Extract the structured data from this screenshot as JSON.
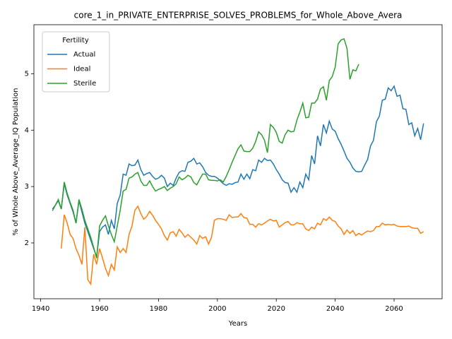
{
  "chart_data": {
    "type": "line",
    "title": "core_1_in_PRIVATE_ENTERPRISE_SOLVES_PROBLEMS_for_Whole_Above_Avera",
    "xlabel": "Years",
    "ylabel": "% of Whole Above_Average_IQ Population",
    "legend_title": "Fertility",
    "legend": "upper left",
    "grid": false,
    "x": [
      1944,
      1945,
      1946,
      1947,
      1948,
      1949,
      1950,
      1951,
      1952,
      1953,
      1954,
      1955,
      1956,
      1957,
      1958,
      1959,
      1960,
      1961,
      1962,
      1963,
      1964,
      1965,
      1966,
      1967,
      1968,
      1969,
      1970,
      1971,
      1972,
      1973,
      1974,
      1975,
      1976,
      1977,
      1978,
      1979,
      1980,
      1981,
      1982,
      1983,
      1984,
      1985,
      1986,
      1987,
      1988,
      1989,
      1990,
      1991,
      1992,
      1993,
      1994,
      1995,
      1996,
      1997,
      1998,
      1999,
      2000,
      2001,
      2002,
      2003,
      2004,
      2005,
      2006,
      2007,
      2008,
      2009,
      2010,
      2011,
      2012,
      2013,
      2014,
      2015,
      2016,
      2017,
      2018,
      2019,
      2020,
      2021,
      2022,
      2023,
      2024,
      2025,
      2026,
      2027,
      2028,
      2029,
      2030,
      2031,
      2032,
      2033,
      2034,
      2035,
      2036,
      2037,
      2038,
      2039,
      2040,
      2041,
      2042,
      2043,
      2044,
      2045,
      2046,
      2047,
      2048,
      2049,
      2050,
      2051,
      2052,
      2053,
      2054,
      2055,
      2056,
      2057,
      2058,
      2059,
      2060,
      2061,
      2062,
      2063,
      2064,
      2065,
      2066,
      2067,
      2068,
      2069,
      2070
    ],
    "series": [
      {
        "name": "Actual",
        "color": "#1f77b4",
        "values": [
          2.6,
          2.67,
          2.75,
          2.6,
          3.05,
          2.85,
          2.7,
          2.55,
          2.35,
          2.75,
          2.55,
          2.35,
          2.2,
          2.05,
          1.9,
          1.75,
          2.2,
          2.28,
          2.32,
          2.15,
          2.4,
          2.25,
          2.7,
          2.85,
          3.22,
          3.2,
          3.4,
          3.37,
          3.38,
          3.47,
          3.3,
          3.2,
          3.23,
          3.25,
          3.18,
          3.13,
          3.15,
          3.2,
          3.15,
          3.0,
          3.06,
          3.02,
          3.15,
          3.25,
          3.28,
          3.27,
          3.43,
          3.45,
          3.5,
          3.4,
          3.42,
          3.35,
          3.25,
          3.2,
          3.18,
          3.18,
          3.15,
          3.1,
          3.05,
          3.02,
          3.05,
          3.04,
          3.07,
          3.08,
          3.22,
          3.13,
          3.22,
          3.14,
          3.3,
          3.28,
          3.47,
          3.43,
          3.5,
          3.46,
          3.47,
          3.4,
          3.3,
          3.22,
          3.12,
          3.07,
          3.06,
          2.9,
          2.98,
          2.9,
          3.08,
          2.98,
          3.22,
          3.12,
          3.55,
          3.4,
          3.9,
          3.72,
          4.1,
          3.95,
          4.16,
          4.02,
          3.98,
          3.85,
          3.75,
          3.63,
          3.5,
          3.43,
          3.33,
          3.27,
          3.26,
          3.27,
          3.38,
          3.48,
          3.72,
          3.82,
          4.15,
          4.25,
          4.53,
          4.55,
          4.75,
          4.7,
          4.78,
          4.6,
          4.62,
          4.38,
          4.37,
          4.1,
          4.13,
          3.9,
          4.03,
          3.83,
          4.12
        ]
      },
      {
        "name": "Ideal",
        "color": "#ff7f0e",
        "values": [
          null,
          null,
          null,
          1.9,
          2.5,
          2.35,
          2.15,
          2.08,
          1.9,
          1.78,
          1.62,
          2.28,
          1.35,
          1.27,
          1.8,
          1.62,
          1.9,
          1.73,
          1.55,
          1.42,
          1.62,
          1.52,
          1.93,
          1.83,
          1.9,
          1.83,
          2.15,
          2.3,
          2.58,
          2.65,
          2.52,
          2.42,
          2.47,
          2.56,
          2.49,
          2.4,
          2.33,
          2.25,
          2.13,
          2.05,
          2.18,
          2.2,
          2.12,
          2.24,
          2.18,
          2.1,
          2.15,
          2.1,
          2.05,
          1.98,
          2.13,
          2.08,
          2.11,
          1.98,
          2.1,
          2.4,
          2.43,
          2.43,
          2.42,
          2.4,
          2.5,
          2.45,
          2.46,
          2.46,
          2.52,
          2.45,
          2.44,
          2.33,
          2.33,
          2.28,
          2.34,
          2.32,
          2.35,
          2.39,
          2.42,
          2.39,
          2.4,
          2.28,
          2.32,
          2.36,
          2.38,
          2.32,
          2.32,
          2.36,
          2.34,
          2.34,
          2.25,
          2.22,
          2.28,
          2.25,
          2.35,
          2.32,
          2.43,
          2.4,
          2.46,
          2.4,
          2.38,
          2.3,
          2.25,
          2.15,
          2.23,
          2.17,
          2.22,
          2.13,
          2.17,
          2.14,
          2.18,
          2.21,
          2.2,
          2.22,
          2.29,
          2.29,
          2.35,
          2.32,
          2.33,
          2.32,
          2.33,
          2.3,
          2.29,
          2.29,
          2.29,
          2.3,
          2.27,
          2.26,
          2.26,
          2.17,
          2.2
        ]
      },
      {
        "name": "Sterile",
        "color": "#2ca02c",
        "values": [
          2.57,
          2.67,
          2.77,
          2.6,
          3.08,
          2.88,
          2.72,
          2.58,
          2.35,
          2.77,
          2.6,
          2.4,
          2.25,
          2.1,
          1.92,
          1.73,
          2.3,
          2.4,
          2.48,
          2.3,
          2.15,
          2.02,
          2.3,
          2.58,
          2.92,
          2.95,
          3.15,
          3.17,
          3.22,
          3.25,
          3.1,
          3.02,
          3.02,
          3.1,
          3.0,
          2.92,
          2.95,
          2.97,
          3.0,
          2.93,
          2.97,
          3.0,
          3.05,
          3.17,
          3.12,
          3.15,
          3.2,
          3.17,
          3.07,
          3.03,
          3.13,
          3.22,
          3.22,
          3.12,
          3.11,
          3.11,
          3.1,
          3.12,
          3.08,
          3.18,
          3.3,
          3.43,
          3.55,
          3.67,
          3.74,
          3.63,
          3.62,
          3.62,
          3.68,
          3.8,
          3.97,
          3.92,
          3.82,
          3.6,
          4.1,
          4.05,
          3.96,
          3.8,
          3.77,
          3.92,
          4.0,
          3.97,
          3.98,
          4.18,
          4.32,
          4.48,
          4.22,
          4.23,
          4.48,
          4.48,
          4.55,
          4.73,
          4.77,
          4.53,
          4.88,
          4.95,
          5.12,
          5.53,
          5.6,
          5.62,
          5.45,
          4.9,
          5.07,
          5.05,
          5.17,
          null,
          null,
          null,
          null,
          null,
          null,
          null,
          null,
          null,
          null,
          null,
          null,
          null,
          null,
          null,
          null,
          null,
          null,
          null,
          null,
          null,
          null
        ]
      }
    ],
    "xlim": [
      1937.7,
      2076.3
    ],
    "xticks": [
      1940,
      1960,
      1980,
      2000,
      2020,
      2040,
      2060
    ],
    "ylim": [
      1.01,
      5.87
    ],
    "yticks": [
      2,
      3,
      4,
      5
    ]
  }
}
